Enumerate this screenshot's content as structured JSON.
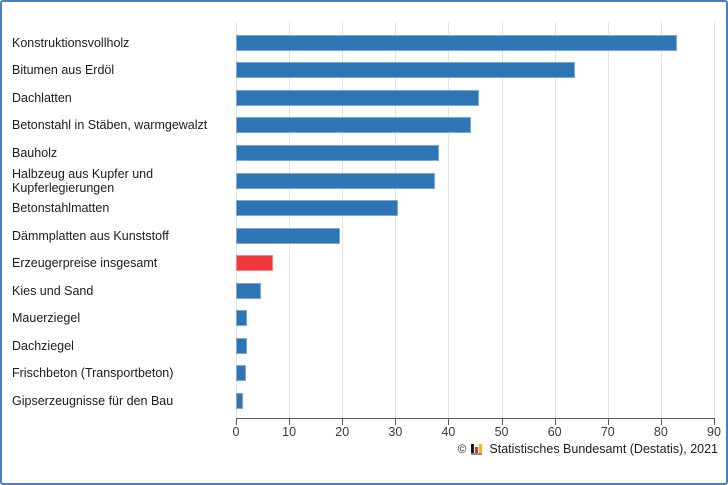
{
  "chart_data": {
    "type": "bar",
    "orientation": "horizontal",
    "categories": [
      "Konstruktionsvollholz",
      "Bitumen aus Erdöl",
      "Dachlatten",
      "Betonstahl in Stäben, warmgewalzt",
      "Bauholz",
      "Halbzeug aus Kupfer und Kupferlegierungen",
      "Betonstahlmatten",
      "Dämmplatten aus Kunststoff",
      "Erzeugerpreise insgesamt",
      "Kies und Sand",
      "Mauerziegel",
      "Dachziegel",
      "Frischbeton (Transportbeton)",
      "Gipserzeugnisse für den Bau"
    ],
    "values": [
      83.0,
      63.9,
      45.7,
      44.3,
      38.2,
      37.5,
      30.5,
      19.6,
      7.0,
      4.8,
      2.1,
      2.1,
      1.8,
      1.4
    ],
    "highlight_index": 8,
    "bar_color": "#2e75b5",
    "highlight_color": "#ee3a3e",
    "xlim": [
      0,
      90
    ],
    "x_ticks": [
      0,
      10,
      20,
      30,
      40,
      50,
      60,
      70,
      80,
      90
    ],
    "grid": true,
    "gridline_color": "#e4e4e4",
    "axis_color": "#595959",
    "legend": "none",
    "title": "",
    "xlabel": "",
    "ylabel": ""
  },
  "footer": {
    "copyright_symbol": "©",
    "source": "Statistisches Bundesamt (Destatis), 2021",
    "logo_icon": "destatis-mini-barchart-icon",
    "logo_colors": [
      "#1a1a1a",
      "#e03131",
      "#f2b705",
      "#8a8a8a"
    ]
  },
  "frame": {
    "border_color": "#4a7ebc",
    "background": "#ffffff"
  }
}
